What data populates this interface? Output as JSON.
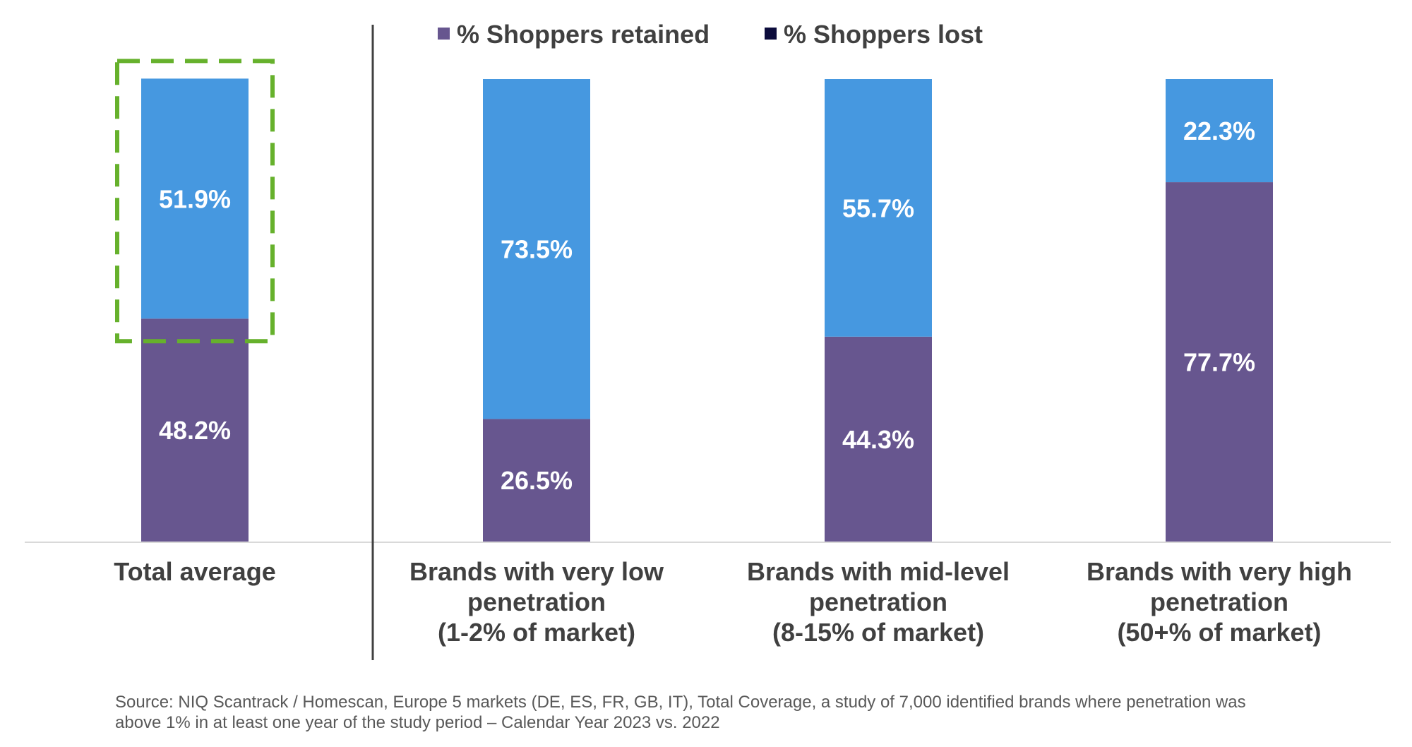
{
  "chart_data": {
    "type": "bar",
    "stacked": true,
    "categories": [
      [
        "Total average"
      ],
      [
        "Brands with very low",
        "penetration",
        "(1-2% of market)"
      ],
      [
        "Brands with mid-level",
        "penetration",
        "(8-15% of market)"
      ],
      [
        "Brands with very high",
        "penetration",
        "(50+% of market)"
      ]
    ],
    "series": [
      {
        "name": "% Shoppers retained",
        "values": [
          48.2,
          26.5,
          44.3,
          77.7
        ],
        "color": "#67568f"
      },
      {
        "name": "% Shoppers lost",
        "values": [
          51.9,
          73.5,
          55.7,
          22.3
        ],
        "color": "#4698e0",
        "legend_color": "#0c0c3c"
      }
    ],
    "data_labels": [
      [
        "48.2%",
        "26.5%",
        "44.3%",
        "77.7%"
      ],
      [
        "51.9%",
        "73.5%",
        "55.7%",
        "22.3%"
      ]
    ],
    "ylim": [
      0,
      100
    ],
    "legend_position": "top",
    "highlight_category": 0,
    "highlight_color": "#66b12c",
    "grid": false
  },
  "source": "Source: NIQ Scantrack / Homescan, Europe 5 markets (DE, ES, FR, GB, IT), Total Coverage, a study of 7,000 identified brands where penetration was above 1% in at least one year of the study period – Calendar Year 2023 vs. 2022"
}
